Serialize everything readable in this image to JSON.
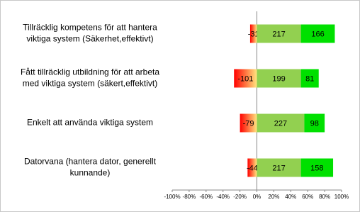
{
  "chart_data": {
    "type": "diverging-bar",
    "categories": [
      [
        "Tillräcklig kompetens för att hantera",
        "viktiga system (Säkerhet,effektivt)"
      ],
      [
        "Fått tillräcklig utbildning  för att arbeta",
        "med viktiga system (säkert,effektivt)"
      ],
      [
        "Enkelt att använda viktiga system"
      ],
      [
        "Datorvana (hantera dator, generellt",
        "kunnande)"
      ]
    ],
    "series": [
      {
        "color": [
          "#ff0000",
          "#ffe680"
        ],
        "values": [
          -8,
          -27,
          -20,
          -11
        ],
        "value_labels": [
          "-31",
          "-101",
          "-79",
          "-44"
        ]
      },
      {
        "color": "#92d050",
        "values": [
          52,
          52,
          56,
          52
        ],
        "value_labels": [
          "217",
          "199",
          "227",
          "217"
        ]
      },
      {
        "color": "#00e000",
        "values": [
          40,
          21,
          24,
          38
        ],
        "value_labels": [
          "166",
          "81",
          "98",
          "158"
        ]
      }
    ],
    "xlim": [
      -100,
      100
    ],
    "xticks": [
      {
        "value": -100,
        "label": "-100%"
      },
      {
        "value": -80,
        "label": "-80%"
      },
      {
        "value": -60,
        "label": "-60%"
      },
      {
        "value": -40,
        "label": "-40%"
      },
      {
        "value": -20,
        "label": "-20%"
      },
      {
        "value": 0,
        "label": "0%"
      },
      {
        "value": 20,
        "label": "20%"
      },
      {
        "value": 40,
        "label": "40%"
      },
      {
        "value": 60,
        "label": "60%"
      },
      {
        "value": 80,
        "label": "80%"
      },
      {
        "value": 100,
        "label": "100%"
      }
    ]
  }
}
